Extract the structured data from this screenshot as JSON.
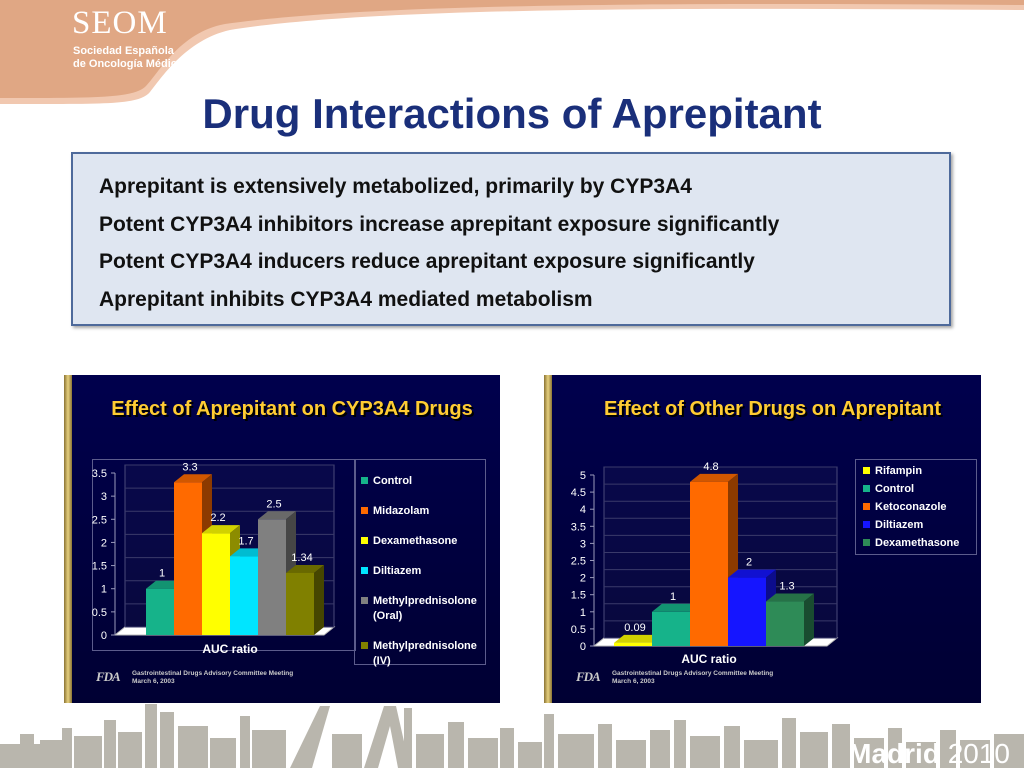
{
  "header": {
    "logo_title": "SEOM",
    "logo_line1": "Sociedad Española",
    "logo_line2": "de Oncología Médica",
    "title": "Drug Interactions of Aprepitant"
  },
  "bullets": [
    "Aprepitant is extensively metabolized, primarily by CYP3A4",
    "Potent CYP3A4 inhibitors increase aprepitant exposure significantly",
    "Potent CYP3A4 inducers reduce aprepitant exposure significantly",
    "Aprepitant inhibits CYP3A4 mediated metabolism"
  ],
  "footer_logo": "FDA",
  "footer_line1": "Gastrointestinal Drugs Advisory Committee Meeting",
  "footer_line2": "March 6, 2003",
  "brand": {
    "madrid": "Madrid",
    "year": "2010"
  },
  "colors": {
    "title": "#1a2f7a",
    "panel_title": "#ffcc33",
    "logo_swoosh": "#e0a784"
  },
  "chart_data": [
    {
      "type": "bar",
      "title": "Effect of Aprepitant on CYP3A4 Drugs",
      "xlabel": "AUC ratio",
      "ylim": [
        0,
        3.5
      ],
      "yticks": [
        "0",
        "0.5",
        "1",
        "1.5",
        "2",
        "2.5",
        "3",
        "3.5"
      ],
      "series": [
        {
          "name": "Control",
          "value": 1,
          "label": "1",
          "color": "#16b38a"
        },
        {
          "name": "Midazolam",
          "value": 3.3,
          "label": "3.3",
          "color": "#ff6a00"
        },
        {
          "name": "Dexamethasone",
          "value": 2.2,
          "label": "2.2",
          "color": "#ffff00"
        },
        {
          "name": "Diltiazem",
          "value": 1.7,
          "label": "1.7",
          "color": "#00e5ff"
        },
        {
          "name": "Methylprednisolone (Oral)",
          "value": 2.5,
          "label": "2.5",
          "color": "#808080"
        },
        {
          "name": "Methylprednisolone (IV)",
          "value": 1.34,
          "label": "1.34",
          "color": "#808000"
        }
      ],
      "legend": [
        [
          "Control"
        ],
        [
          "Midazolam"
        ],
        [
          "Dexamethasone"
        ],
        [
          "Diltiazem"
        ],
        [
          "Methylprednisolone",
          "(Oral)"
        ],
        [
          "Methylprednisolone",
          "(IV)"
        ]
      ],
      "legend_position": "right"
    },
    {
      "type": "bar",
      "title": "Effect of Other Drugs on Aprepitant",
      "xlabel": "AUC ratio",
      "ylim": [
        0,
        5
      ],
      "yticks": [
        "0",
        "0.5",
        "1",
        "1.5",
        "2",
        "2.5",
        "3",
        "3.5",
        "4",
        "4.5",
        "5"
      ],
      "series": [
        {
          "name": "Rifampin",
          "value": 0.09,
          "label": "0.09",
          "color": "#ffff00"
        },
        {
          "name": "Control",
          "value": 1,
          "label": "1",
          "color": "#16b38a"
        },
        {
          "name": "Ketoconazole",
          "value": 4.8,
          "label": "4.8",
          "color": "#ff6a00"
        },
        {
          "name": "Diltiazem",
          "value": 2,
          "label": "2",
          "color": "#1515ff"
        },
        {
          "name": "Dexamethasone",
          "value": 1.3,
          "label": "1.3",
          "color": "#2e8b57"
        }
      ],
      "legend": [
        [
          "Rifampin"
        ],
        [
          "Control"
        ],
        [
          "Ketoconazole"
        ],
        [
          "Diltiazem"
        ],
        [
          "Dexamethasone"
        ]
      ],
      "legend_position": "right"
    }
  ]
}
